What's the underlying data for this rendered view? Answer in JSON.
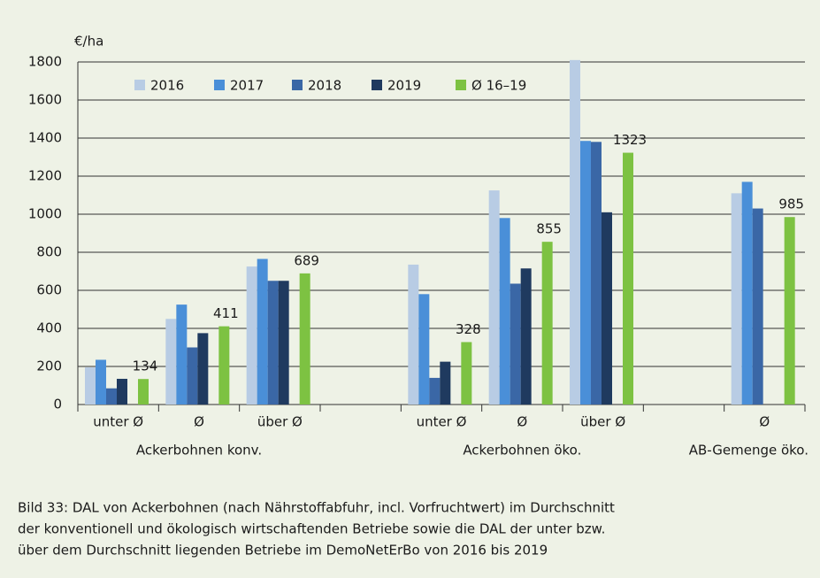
{
  "chart_data": {
    "type": "bar",
    "y_label": "€/ha",
    "categories": [
      "unter Ø",
      "Ø",
      "über Ø",
      null,
      "unter Ø",
      "Ø",
      "über Ø",
      null,
      "Ø"
    ],
    "groups": [
      "Ackerbohnen konv.",
      "Ackerbohnen öko.",
      "AB-Gemenge öko."
    ],
    "series": [
      {
        "name": "2016",
        "color": "#b8cce4",
        "values": [
          195,
          450,
          725,
          null,
          735,
          1125,
          1810,
          null,
          1110
        ]
      },
      {
        "name": "2017",
        "color": "#4a8fd8",
        "values": [
          235,
          525,
          765,
          null,
          580,
          980,
          1385,
          null,
          1170
        ]
      },
      {
        "name": "2018",
        "color": "#3a67a6",
        "values": [
          85,
          300,
          650,
          null,
          140,
          635,
          1380,
          null,
          1030
        ]
      },
      {
        "name": "2019",
        "color": "#1f3a5f",
        "values": [
          135,
          375,
          650,
          null,
          225,
          715,
          1010,
          null,
          null
        ]
      },
      {
        "name": "Ø 16–19",
        "color": "#7dc242",
        "values": [
          134,
          411,
          689,
          null,
          328,
          855,
          1323,
          null,
          985
        ],
        "data_labels": true
      }
    ],
    "ylim": [
      0,
      1800
    ],
    "yticks": [
      0,
      200,
      400,
      600,
      800,
      1000,
      1200,
      1400,
      1600,
      1800
    ],
    "grid": true,
    "caption": [
      "Bild 33: DAL von Ackerbohnen (nach Nährstoffabfuhr, incl. Vorfruchtwert) im Durchschnitt",
      "der konventionell und ökologisch wirtschaftenden Betriebe sowie die DAL der unter bzw.",
      "über dem Durchschnitt liegenden Betriebe im DemoNetErBo von 2016 bis 2019"
    ]
  }
}
